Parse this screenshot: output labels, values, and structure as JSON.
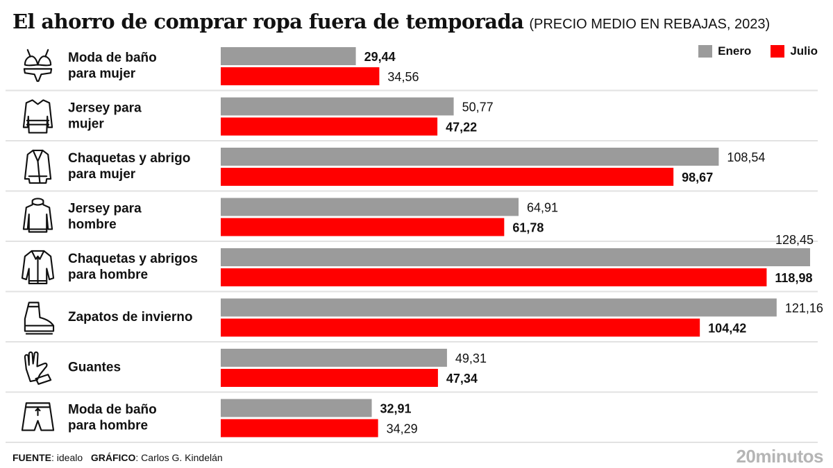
{
  "header": {
    "title": "El ahorro de comprar ropa fuera de temporada",
    "subtitle": "(PRECIO MEDIO EN REBAJAS, 2023)"
  },
  "legend": [
    {
      "label": "Enero",
      "color": "#9b9b9b"
    },
    {
      "label": "Julio",
      "color": "#ff0000"
    }
  ],
  "footer": {
    "source_label": "FUENTE",
    "source_value": " idealo",
    "graphic_label": "GRÁFICO",
    "graphic_value": " Carlos G. Kindelán",
    "brand": "20minutos"
  },
  "chart_data": {
    "type": "bar",
    "orientation": "horizontal",
    "title": "El ahorro de comprar ropa fuera de temporada",
    "subtitle": "(PRECIO MEDIO EN REBAJAS, 2023)",
    "xlabel": "",
    "ylabel": "",
    "xlim": [
      0,
      128.45
    ],
    "grid": false,
    "legend_position": "top-right",
    "decimal_separator": ",",
    "categories": [
      {
        "label": [
          "Moda de baño",
          "para mujer"
        ],
        "icon": "bikini-icon"
      },
      {
        "label": [
          "Jersey para",
          "mujer"
        ],
        "icon": "womens-sweater-icon"
      },
      {
        "label": [
          "Chaquetas y abrigo",
          "para mujer"
        ],
        "icon": "womens-coat-icon"
      },
      {
        "label": [
          "Jersey para",
          "hombre"
        ],
        "icon": "turtleneck-sweater-icon"
      },
      {
        "label": [
          "Chaquetas y abrigos",
          "para hombre"
        ],
        "icon": "mens-coat-icon"
      },
      {
        "label": [
          "Zapatos de invierno"
        ],
        "icon": "boot-icon"
      },
      {
        "label": [
          "Guantes"
        ],
        "icon": "gloves-icon"
      },
      {
        "label": [
          "Moda de baño",
          "para hombre"
        ],
        "icon": "swim-shorts-icon"
      }
    ],
    "series": [
      {
        "name": "Enero",
        "color": "#9b9b9b",
        "values": [
          29.44,
          50.77,
          108.54,
          64.91,
          128.45,
          121.16,
          49.31,
          32.91
        ]
      },
      {
        "name": "Julio",
        "color": "#ff0000",
        "values": [
          34.56,
          47.22,
          98.67,
          61.78,
          118.98,
          104.42,
          47.34,
          34.29
        ]
      }
    ]
  }
}
